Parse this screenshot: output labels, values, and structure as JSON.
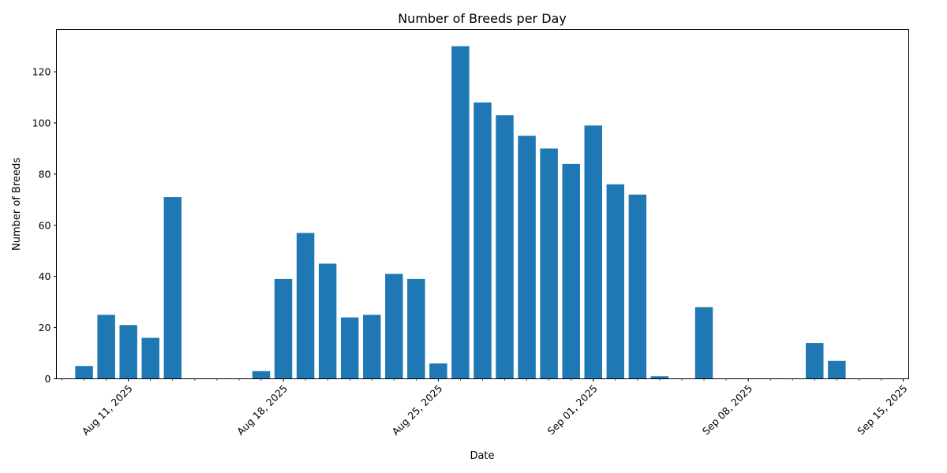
{
  "chart_data": {
    "type": "bar",
    "title": "Number of Breeds per Day",
    "xlabel": "Date",
    "ylabel": "Number of Breeds",
    "bar_color": "#1f77b4",
    "x_axis": "date",
    "xlim": [
      "2025-08-07T18:00",
      "2025-09-15T06:00"
    ],
    "ylim": [
      0,
      136.5
    ],
    "y_ticks": [
      0,
      20,
      40,
      60,
      80,
      100,
      120
    ],
    "x_ticks": [
      {
        "date": "2025-08-11",
        "label": "Aug 11, 2025"
      },
      {
        "date": "2025-08-18",
        "label": "Aug 18, 2025"
      },
      {
        "date": "2025-08-25",
        "label": "Aug 25, 2025"
      },
      {
        "date": "2025-09-01",
        "label": "Sep 01, 2025"
      },
      {
        "date": "2025-09-08",
        "label": "Sep 08, 2025"
      },
      {
        "date": "2025-09-15",
        "label": "Sep 15, 2025"
      }
    ],
    "grid": false,
    "legend": "none",
    "points": [
      {
        "date": "2025-08-09",
        "value": 5
      },
      {
        "date": "2025-08-10",
        "value": 25
      },
      {
        "date": "2025-08-11",
        "value": 21
      },
      {
        "date": "2025-08-12",
        "value": 16
      },
      {
        "date": "2025-08-13",
        "value": 71
      },
      {
        "date": "2025-08-17",
        "value": 3
      },
      {
        "date": "2025-08-18",
        "value": 39
      },
      {
        "date": "2025-08-19",
        "value": 57
      },
      {
        "date": "2025-08-20",
        "value": 45
      },
      {
        "date": "2025-08-21",
        "value": 24
      },
      {
        "date": "2025-08-22",
        "value": 25
      },
      {
        "date": "2025-08-23",
        "value": 41
      },
      {
        "date": "2025-08-24",
        "value": 39
      },
      {
        "date": "2025-08-25",
        "value": 6
      },
      {
        "date": "2025-08-26",
        "value": 130
      },
      {
        "date": "2025-08-27",
        "value": 108
      },
      {
        "date": "2025-08-28",
        "value": 103
      },
      {
        "date": "2025-08-29",
        "value": 95
      },
      {
        "date": "2025-08-30",
        "value": 90
      },
      {
        "date": "2025-08-31",
        "value": 84
      },
      {
        "date": "2025-09-01",
        "value": 99
      },
      {
        "date": "2025-09-02",
        "value": 76
      },
      {
        "date": "2025-09-03",
        "value": 72
      },
      {
        "date": "2025-09-04",
        "value": 1
      },
      {
        "date": "2025-09-06",
        "value": 28
      },
      {
        "date": "2025-09-11",
        "value": 14
      },
      {
        "date": "2025-09-12",
        "value": 7
      }
    ]
  }
}
